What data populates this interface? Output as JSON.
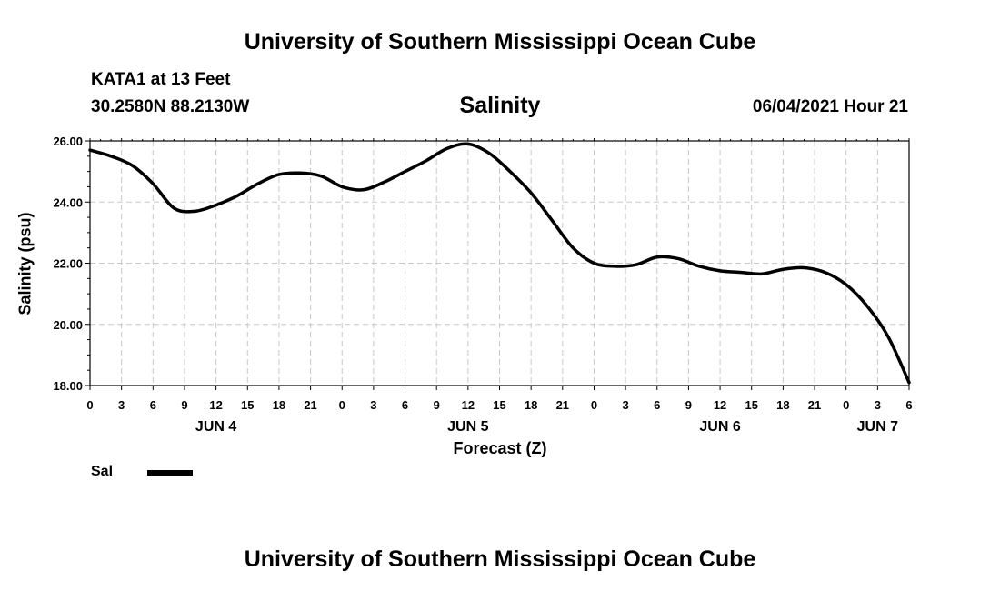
{
  "header": {
    "title": "University of Southern Mississippi Ocean Cube",
    "station": "KATA1 at 13 Feet",
    "coords": "30.2580N  88.2130W",
    "variable": "Salinity",
    "datetime": "06/04/2021 Hour 21"
  },
  "footer": {
    "title": "University of Southern Mississippi Ocean Cube"
  },
  "legend": {
    "label": "Sal"
  },
  "colors": {
    "line": "#000000",
    "grid": "#c8c8c8",
    "axis": "#000000"
  },
  "chart_data": {
    "type": "line",
    "title": "Salinity",
    "xlabel": "Forecast (Z)",
    "ylabel": "Salinity (psu)",
    "xlim": [
      0,
      78
    ],
    "ylim": [
      18,
      26
    ],
    "grid": true,
    "legend_position": "bottom-left",
    "yticks": [
      "18.00",
      "20.00",
      "22.00",
      "24.00",
      "26.00"
    ],
    "yticks_values": [
      18,
      20,
      22,
      24,
      26
    ],
    "xticks": [
      {
        "x": 0,
        "label": "0"
      },
      {
        "x": 3,
        "label": "3"
      },
      {
        "x": 6,
        "label": "6"
      },
      {
        "x": 9,
        "label": "9"
      },
      {
        "x": 12,
        "label": "12"
      },
      {
        "x": 15,
        "label": "15"
      },
      {
        "x": 18,
        "label": "18"
      },
      {
        "x": 21,
        "label": "21"
      },
      {
        "x": 24,
        "label": "0"
      },
      {
        "x": 27,
        "label": "3"
      },
      {
        "x": 30,
        "label": "6"
      },
      {
        "x": 33,
        "label": "9"
      },
      {
        "x": 36,
        "label": "12"
      },
      {
        "x": 39,
        "label": "15"
      },
      {
        "x": 42,
        "label": "18"
      },
      {
        "x": 45,
        "label": "21"
      },
      {
        "x": 48,
        "label": "0"
      },
      {
        "x": 51,
        "label": "3"
      },
      {
        "x": 54,
        "label": "6"
      },
      {
        "x": 57,
        "label": "9"
      },
      {
        "x": 60,
        "label": "12"
      },
      {
        "x": 63,
        "label": "15"
      },
      {
        "x": 66,
        "label": "18"
      },
      {
        "x": 69,
        "label": "21"
      },
      {
        "x": 72,
        "label": "0"
      },
      {
        "x": 75,
        "label": "3"
      },
      {
        "x": 78,
        "label": "6"
      }
    ],
    "day_labels": [
      {
        "x": 12,
        "label": "JUN 4"
      },
      {
        "x": 36,
        "label": "JUN 5"
      },
      {
        "x": 60,
        "label": "JUN 6"
      },
      {
        "x": 75,
        "label": "JUN 7"
      }
    ],
    "series": [
      {
        "name": "Sal",
        "x": [
          0,
          2,
          4,
          6,
          8,
          10,
          12,
          14,
          16,
          18,
          20,
          22,
          24,
          26,
          28,
          30,
          32,
          34,
          36,
          38,
          40,
          42,
          44,
          46,
          48,
          50,
          52,
          54,
          56,
          58,
          60,
          62,
          64,
          66,
          68,
          70,
          72,
          74,
          76,
          78
        ],
        "values": [
          25.7,
          25.5,
          25.2,
          24.6,
          23.8,
          23.7,
          23.9,
          24.2,
          24.6,
          24.9,
          24.95,
          24.85,
          24.5,
          24.4,
          24.65,
          25.0,
          25.35,
          25.75,
          25.9,
          25.6,
          25.0,
          24.3,
          23.4,
          22.5,
          22.0,
          21.9,
          21.95,
          22.2,
          22.15,
          21.9,
          21.75,
          21.7,
          21.65,
          21.8,
          21.85,
          21.7,
          21.3,
          20.6,
          19.6,
          18.1
        ]
      }
    ]
  }
}
